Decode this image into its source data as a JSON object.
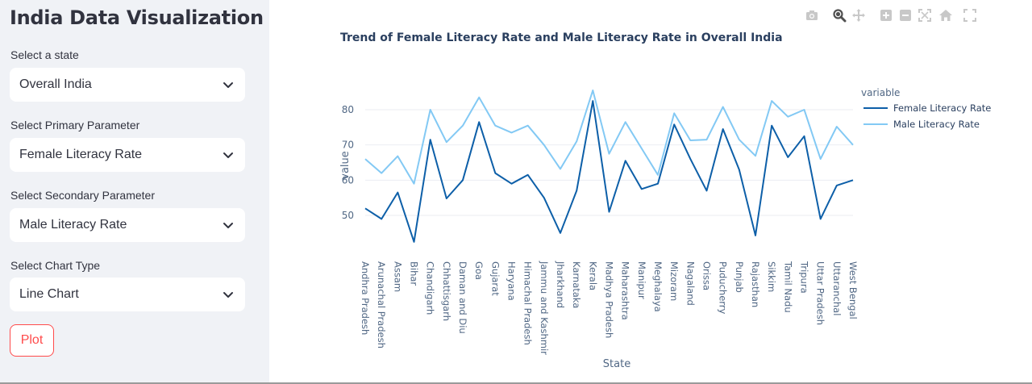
{
  "sidebar": {
    "title": "India Data Visualization",
    "fields": [
      {
        "label": "Select a state",
        "value": "Overall India"
      },
      {
        "label": "Select Primary Parameter",
        "value": "Female Literacy Rate"
      },
      {
        "label": "Select Secondary Parameter",
        "value": "Male Literacy Rate"
      },
      {
        "label": "Select Chart Type",
        "value": "Line Chart"
      }
    ],
    "plot_button": "Plot"
  },
  "modebar": {
    "buttons": [
      "camera-icon",
      "zoom-icon",
      "pan-icon",
      "zoom-in-icon",
      "zoom-out-icon",
      "autoscale-icon",
      "home-icon",
      "fullscreen-icon"
    ]
  },
  "colors": {
    "accent": "#ff4b4b",
    "sidebar_bg": "#f0f2f6",
    "female_line": "#0d5fa8",
    "male_line": "#83c9f4"
  },
  "chart_data": {
    "type": "line",
    "title": "Trend of Female Literacy Rate and Male Literacy Rate in Overall India",
    "xlabel": "State",
    "ylabel": "value",
    "legend_title": "variable",
    "legend_position": "right",
    "grid": true,
    "ylim": [
      40,
      86
    ],
    "yticks": [
      50,
      60,
      70,
      80
    ],
    "categories": [
      "Andhra Pradesh",
      "Arunachal Pradesh",
      "Assam",
      "Bihar",
      "Chandigarh",
      "Chhattisgarh",
      "Daman and Diu",
      "Goa",
      "Gujarat",
      "Haryana",
      "Himachal Pradesh",
      "Jammu and Kashmir",
      "Jharkhand",
      "Karnataka",
      "Kerala",
      "Madhya Pradesh",
      "Maharashtra",
      "Manipur",
      "Meghalaya",
      "Mizoram",
      "Nagaland",
      "Orissa",
      "Puducherry",
      "Punjab",
      "Rajasthan",
      "Sikkim",
      "Tamil Nadu",
      "Tripura",
      "Uttar Pradesh",
      "Uttaranchal",
      "West Bengal"
    ],
    "series": [
      {
        "name": "Female Literacy Rate",
        "values": [
          52.0,
          49.0,
          56.5,
          42.5,
          71.5,
          54.8,
          60.0,
          76.5,
          62.0,
          59.0,
          61.5,
          55.0,
          45.0,
          57.0,
          82.5,
          51.0,
          65.5,
          57.5,
          59.0,
          75.8,
          66.0,
          57.0,
          74.5,
          63.0,
          44.3,
          75.5,
          66.5,
          72.5,
          49.0,
          58.5,
          60.0
        ]
      },
      {
        "name": "Male Literacy Rate",
        "values": [
          66.0,
          62.0,
          66.8,
          59.0,
          80.0,
          70.8,
          75.5,
          83.5,
          75.5,
          73.5,
          75.5,
          70.0,
          63.2,
          71.0,
          85.5,
          67.5,
          76.5,
          69.0,
          61.5,
          79.0,
          71.3,
          71.5,
          80.8,
          71.5,
          66.9,
          82.5,
          78.0,
          80.0,
          66.0,
          75.2,
          70.0
        ]
      }
    ]
  }
}
